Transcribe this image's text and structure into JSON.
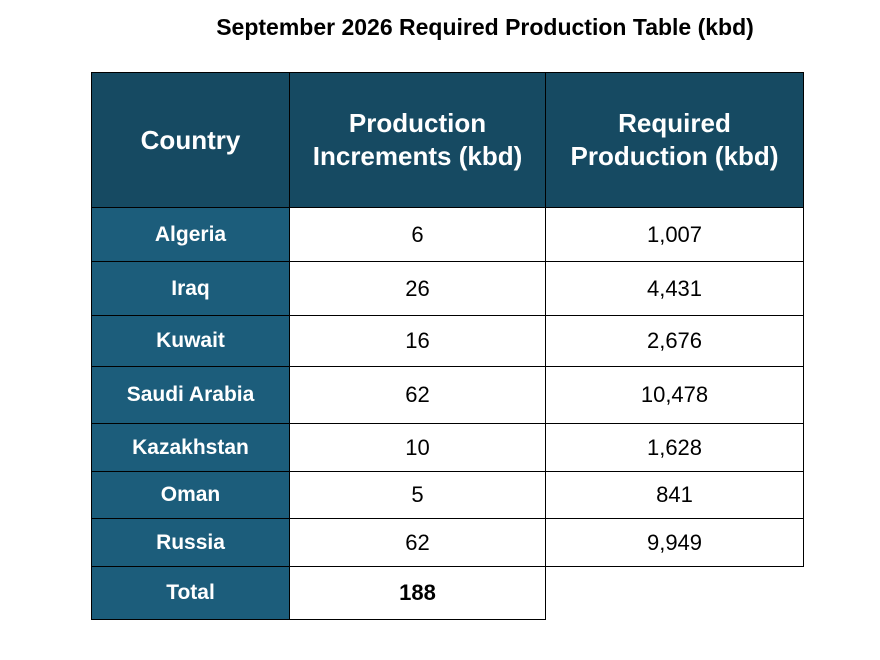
{
  "title": "September 2026 Required Production Table (kbd)",
  "table": {
    "header": [
      "Country",
      "Production Increments (kbd)",
      "Required Production (kbd)"
    ],
    "rows": [
      [
        "Algeria",
        "6",
        "1,007"
      ],
      [
        "Iraq",
        "26",
        "4,431"
      ],
      [
        "Kuwait",
        "16",
        "2,676"
      ],
      [
        "Saudi Arabia",
        "62",
        "10,478"
      ],
      [
        "Kazakhstan",
        "10",
        "1,628"
      ],
      [
        "Oman",
        "5",
        "841"
      ],
      [
        "Russia",
        "62",
        "9,949"
      ]
    ],
    "total": [
      "Total",
      "188"
    ]
  }
}
